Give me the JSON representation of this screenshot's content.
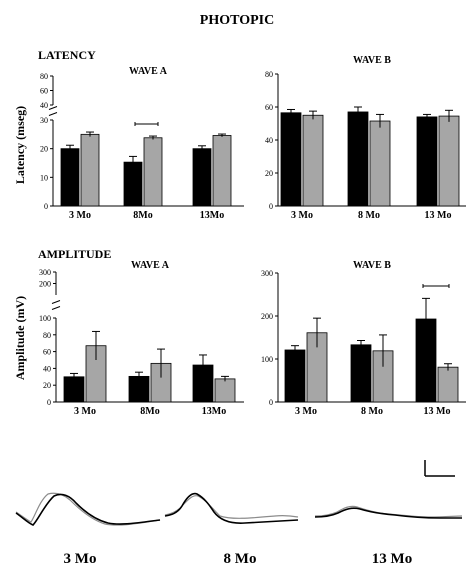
{
  "figure_title": "PHOTOPIC",
  "colors": {
    "black_bar": "#000000",
    "gray_bar": "#a6a6a6",
    "gray_trace": "#8c8c8c"
  },
  "chart_data": [
    {
      "id": "latency_a",
      "type": "bar",
      "section": "LATENCY",
      "title": "WAVE A",
      "ylabel": "Latency (mseg)",
      "categories": [
        "3 Mo",
        "8Mo",
        "13Mo"
      ],
      "broken_axis": true,
      "ylim_lower": [
        0,
        30
      ],
      "ylim_upper": [
        40,
        80
      ],
      "yticks": [
        0,
        10,
        20,
        30,
        40,
        60,
        80
      ],
      "series": [
        {
          "color": "black",
          "values": [
            20,
            15.3,
            20
          ],
          "errors": [
            1.2,
            2.0,
            1.0
          ]
        },
        {
          "color": "gray",
          "values": [
            25,
            23.8,
            24.6
          ],
          "errors": [
            0.8,
            0.6,
            0.5
          ]
        }
      ],
      "significance": [
        {
          "category": "8Mo"
        }
      ]
    },
    {
      "id": "latency_b",
      "type": "bar",
      "title": "WAVE B",
      "categories": [
        "3 Mo",
        "8 Mo",
        "13 Mo"
      ],
      "ylim": [
        0,
        80
      ],
      "yticks": [
        0,
        20,
        40,
        60,
        80
      ],
      "series": [
        {
          "color": "black",
          "values": [
            56.5,
            57,
            54
          ],
          "errors": [
            2,
            3,
            1.5
          ]
        },
        {
          "color": "gray",
          "values": [
            55,
            51.5,
            54.5
          ],
          "errors": [
            2.5,
            4,
            3.5
          ]
        }
      ]
    },
    {
      "id": "amplitude_a",
      "type": "bar",
      "section": "AMPLITUDE",
      "title": "WAVE A",
      "ylabel": "Amplitude (mV)",
      "categories": [
        "3  Mo",
        "8Mo",
        "13Mo"
      ],
      "broken_axis": true,
      "ylim_lower": [
        0,
        100
      ],
      "ylim_upper": [
        100,
        300
      ],
      "yticks": [
        0,
        20,
        40,
        60,
        80,
        100,
        200,
        300
      ],
      "series": [
        {
          "color": "black",
          "values": [
            30,
            30.5,
            44
          ],
          "errors": [
            4,
            5,
            12
          ]
        },
        {
          "color": "gray",
          "values": [
            67,
            46,
            27.5
          ],
          "errors": [
            17,
            17,
            3
          ]
        }
      ]
    },
    {
      "id": "amplitude_b",
      "type": "bar",
      "title": "WAVE B",
      "categories": [
        "3 Mo",
        "8 Mo",
        "13 Mo"
      ],
      "ylim": [
        0,
        300
      ],
      "yticks": [
        0,
        100,
        200,
        300
      ],
      "series": [
        {
          "color": "black",
          "values": [
            121,
            133,
            193
          ],
          "errors": [
            10,
            10,
            48
          ]
        },
        {
          "color": "gray",
          "values": [
            161,
            119,
            81
          ],
          "errors": [
            34,
            37,
            8
          ]
        }
      ],
      "significance": [
        {
          "category": "13 Mo"
        }
      ]
    }
  ],
  "waveform_labels": [
    "3 Mo",
    "8 Mo",
    "13 Mo"
  ]
}
